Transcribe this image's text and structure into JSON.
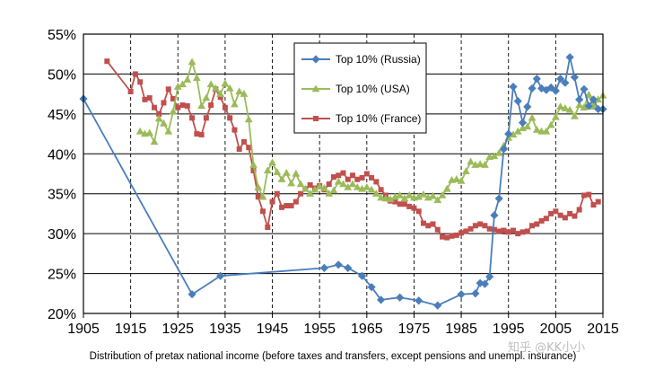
{
  "chart_data": {
    "type": "line",
    "title": "",
    "xlabel": "Distribution of pretax national income (before taxes and transfers, except pensions and unempl. insurance)",
    "ylabel": "",
    "xlim": [
      1905,
      2015
    ],
    "ylim": [
      0.2,
      0.55
    ],
    "x_ticks": [
      1905,
      1915,
      1925,
      1935,
      1945,
      1955,
      1965,
      1975,
      1985,
      1995,
      2005,
      2015
    ],
    "y_ticks": [
      0.2,
      0.25,
      0.3,
      0.35,
      0.4,
      0.45,
      0.5,
      0.55
    ],
    "y_tick_labels": [
      "20%",
      "25%",
      "30%",
      "35%",
      "40%",
      "45%",
      "50%",
      "55%"
    ],
    "grid": "vertical dashed, horizontal solid",
    "legend_position": "top-center",
    "series": [
      {
        "name": "Top 10% (Russia)",
        "color": "#4a7ebb",
        "marker": "diamond",
        "points": [
          [
            1905,
            0.469
          ],
          [
            1928,
            0.224
          ],
          [
            1934,
            0.247
          ],
          [
            1956,
            0.257
          ],
          [
            1959,
            0.261
          ],
          [
            1961,
            0.257
          ],
          [
            1964,
            0.247
          ],
          [
            1966,
            0.233
          ],
          [
            1968,
            0.217
          ],
          [
            1972,
            0.22
          ],
          [
            1976,
            0.216
          ],
          [
            1980,
            0.21
          ],
          [
            1985,
            0.224
          ],
          [
            1988,
            0.225
          ],
          [
            1989,
            0.238
          ],
          [
            1990,
            0.237
          ],
          [
            1991,
            0.246
          ],
          [
            1992,
            0.323
          ],
          [
            1993,
            0.344
          ],
          [
            1994,
            0.406
          ],
          [
            1995,
            0.425
          ],
          [
            1996,
            0.484
          ],
          [
            1997,
            0.466
          ],
          [
            1998,
            0.439
          ],
          [
            1999,
            0.459
          ],
          [
            2000,
            0.482
          ],
          [
            2001,
            0.494
          ],
          [
            2002,
            0.482
          ],
          [
            2003,
            0.48
          ],
          [
            2004,
            0.483
          ],
          [
            2005,
            0.479
          ],
          [
            2006,
            0.494
          ],
          [
            2007,
            0.489
          ],
          [
            2008,
            0.521
          ],
          [
            2009,
            0.496
          ],
          [
            2010,
            0.468
          ],
          [
            2011,
            0.481
          ],
          [
            2012,
            0.46
          ],
          [
            2013,
            0.468
          ],
          [
            2014,
            0.456
          ],
          [
            2015,
            0.456
          ]
        ]
      },
      {
        "name": "Top 10% (USA)",
        "color": "#9bbb59",
        "marker": "triangle",
        "points": [
          [
            1917,
            0.428
          ],
          [
            1918,
            0.425
          ],
          [
            1919,
            0.426
          ],
          [
            1920,
            0.415
          ],
          [
            1921,
            0.444
          ],
          [
            1922,
            0.438
          ],
          [
            1923,
            0.428
          ],
          [
            1924,
            0.453
          ],
          [
            1925,
            0.484
          ],
          [
            1926,
            0.487
          ],
          [
            1927,
            0.493
          ],
          [
            1928,
            0.515
          ],
          [
            1929,
            0.495
          ],
          [
            1930,
            0.46
          ],
          [
            1931,
            0.47
          ],
          [
            1932,
            0.487
          ],
          [
            1933,
            0.482
          ],
          [
            1934,
            0.475
          ],
          [
            1935,
            0.488
          ],
          [
            1936,
            0.482
          ],
          [
            1937,
            0.462
          ],
          [
            1938,
            0.478
          ],
          [
            1939,
            0.475
          ],
          [
            1940,
            0.443
          ],
          [
            1941,
            0.386
          ],
          [
            1942,
            0.358
          ],
          [
            1943,
            0.346
          ],
          [
            1944,
            0.379
          ],
          [
            1945,
            0.389
          ],
          [
            1946,
            0.377
          ],
          [
            1947,
            0.368
          ],
          [
            1948,
            0.376
          ],
          [
            1949,
            0.363
          ],
          [
            1950,
            0.375
          ],
          [
            1951,
            0.362
          ],
          [
            1952,
            0.356
          ],
          [
            1953,
            0.35
          ],
          [
            1954,
            0.355
          ],
          [
            1955,
            0.359
          ],
          [
            1956,
            0.357
          ],
          [
            1957,
            0.35
          ],
          [
            1958,
            0.354
          ],
          [
            1959,
            0.365
          ],
          [
            1960,
            0.362
          ],
          [
            1961,
            0.358
          ],
          [
            1962,
            0.362
          ],
          [
            1963,
            0.358
          ],
          [
            1964,
            0.356
          ],
          [
            1965,
            0.358
          ],
          [
            1966,
            0.355
          ],
          [
            1967,
            0.35
          ],
          [
            1968,
            0.345
          ],
          [
            1969,
            0.344
          ],
          [
            1970,
            0.343
          ],
          [
            1971,
            0.346
          ],
          [
            1972,
            0.348
          ],
          [
            1973,
            0.344
          ],
          [
            1974,
            0.348
          ],
          [
            1975,
            0.345
          ],
          [
            1976,
            0.346
          ],
          [
            1977,
            0.349
          ],
          [
            1978,
            0.345
          ],
          [
            1979,
            0.347
          ],
          [
            1980,
            0.342
          ],
          [
            1981,
            0.348
          ],
          [
            1982,
            0.356
          ],
          [
            1983,
            0.367
          ],
          [
            1984,
            0.368
          ],
          [
            1985,
            0.366
          ],
          [
            1986,
            0.378
          ],
          [
            1987,
            0.39
          ],
          [
            1988,
            0.386
          ],
          [
            1989,
            0.387
          ],
          [
            1990,
            0.386
          ],
          [
            1991,
            0.396
          ],
          [
            1992,
            0.397
          ],
          [
            1993,
            0.401
          ],
          [
            1994,
            0.41
          ],
          [
            1995,
            0.42
          ],
          [
            1996,
            0.424
          ],
          [
            1997,
            0.428
          ],
          [
            1998,
            0.432
          ],
          [
            1999,
            0.434
          ],
          [
            2000,
            0.445
          ],
          [
            2001,
            0.43
          ],
          [
            2002,
            0.428
          ],
          [
            2003,
            0.428
          ],
          [
            2004,
            0.436
          ],
          [
            2005,
            0.446
          ],
          [
            2006,
            0.459
          ],
          [
            2007,
            0.457
          ],
          [
            2008,
            0.455
          ],
          [
            2009,
            0.447
          ],
          [
            2010,
            0.461
          ],
          [
            2011,
            0.458
          ],
          [
            2012,
            0.474
          ],
          [
            2013,
            0.459
          ],
          [
            2014,
            0.468
          ],
          [
            2015,
            0.473
          ]
        ]
      },
      {
        "name": "Top 10% (France)",
        "color": "#c0504d",
        "marker": "square",
        "points": [
          [
            1910,
            0.516
          ],
          [
            1915,
            0.478
          ],
          [
            1916,
            0.5
          ],
          [
            1917,
            0.49
          ],
          [
            1918,
            0.468
          ],
          [
            1919,
            0.47
          ],
          [
            1920,
            0.458
          ],
          [
            1921,
            0.45
          ],
          [
            1922,
            0.464
          ],
          [
            1923,
            0.481
          ],
          [
            1924,
            0.469
          ],
          [
            1925,
            0.458
          ],
          [
            1926,
            0.461
          ],
          [
            1927,
            0.46
          ],
          [
            1928,
            0.445
          ],
          [
            1929,
            0.425
          ],
          [
            1930,
            0.424
          ],
          [
            1931,
            0.445
          ],
          [
            1932,
            0.461
          ],
          [
            1933,
            0.481
          ],
          [
            1934,
            0.471
          ],
          [
            1935,
            0.458
          ],
          [
            1936,
            0.445
          ],
          [
            1937,
            0.43
          ],
          [
            1938,
            0.406
          ],
          [
            1939,
            0.415
          ],
          [
            1940,
            0.408
          ],
          [
            1941,
            0.379
          ],
          [
            1942,
            0.346
          ],
          [
            1943,
            0.328
          ],
          [
            1944,
            0.308
          ],
          [
            1945,
            0.34
          ],
          [
            1946,
            0.35
          ],
          [
            1947,
            0.333
          ],
          [
            1948,
            0.335
          ],
          [
            1949,
            0.335
          ],
          [
            1950,
            0.34
          ],
          [
            1951,
            0.35
          ],
          [
            1952,
            0.356
          ],
          [
            1953,
            0.361
          ],
          [
            1954,
            0.357
          ],
          [
            1955,
            0.36
          ],
          [
            1956,
            0.355
          ],
          [
            1957,
            0.362
          ],
          [
            1958,
            0.371
          ],
          [
            1959,
            0.373
          ],
          [
            1960,
            0.376
          ],
          [
            1961,
            0.368
          ],
          [
            1962,
            0.373
          ],
          [
            1963,
            0.368
          ],
          [
            1964,
            0.37
          ],
          [
            1965,
            0.375
          ],
          [
            1966,
            0.37
          ],
          [
            1967,
            0.365
          ],
          [
            1968,
            0.355
          ],
          [
            1969,
            0.348
          ],
          [
            1970,
            0.341
          ],
          [
            1971,
            0.34
          ],
          [
            1972,
            0.337
          ],
          [
            1973,
            0.337
          ],
          [
            1974,
            0.334
          ],
          [
            1975,
            0.332
          ],
          [
            1976,
            0.328
          ],
          [
            1977,
            0.313
          ],
          [
            1978,
            0.31
          ],
          [
            1979,
            0.312
          ],
          [
            1980,
            0.305
          ],
          [
            1981,
            0.296
          ],
          [
            1982,
            0.295
          ],
          [
            1983,
            0.297
          ],
          [
            1984,
            0.298
          ],
          [
            1985,
            0.301
          ],
          [
            1986,
            0.303
          ],
          [
            1987,
            0.306
          ],
          [
            1988,
            0.31
          ],
          [
            1989,
            0.312
          ],
          [
            1990,
            0.31
          ],
          [
            1991,
            0.306
          ],
          [
            1992,
            0.305
          ],
          [
            1993,
            0.303
          ],
          [
            1994,
            0.304
          ],
          [
            1995,
            0.302
          ],
          [
            1996,
            0.304
          ],
          [
            1997,
            0.3
          ],
          [
            1998,
            0.302
          ],
          [
            1999,
            0.303
          ],
          [
            2000,
            0.31
          ],
          [
            2001,
            0.312
          ],
          [
            2002,
            0.316
          ],
          [
            2003,
            0.319
          ],
          [
            2004,
            0.325
          ],
          [
            2005,
            0.328
          ],
          [
            2006,
            0.323
          ],
          [
            2007,
            0.32
          ],
          [
            2008,
            0.325
          ],
          [
            2009,
            0.322
          ],
          [
            2010,
            0.33
          ],
          [
            2011,
            0.348
          ],
          [
            2012,
            0.349
          ],
          [
            2013,
            0.336
          ],
          [
            2014,
            0.34
          ]
        ]
      }
    ]
  },
  "watermark": "知乎 @KK小小"
}
